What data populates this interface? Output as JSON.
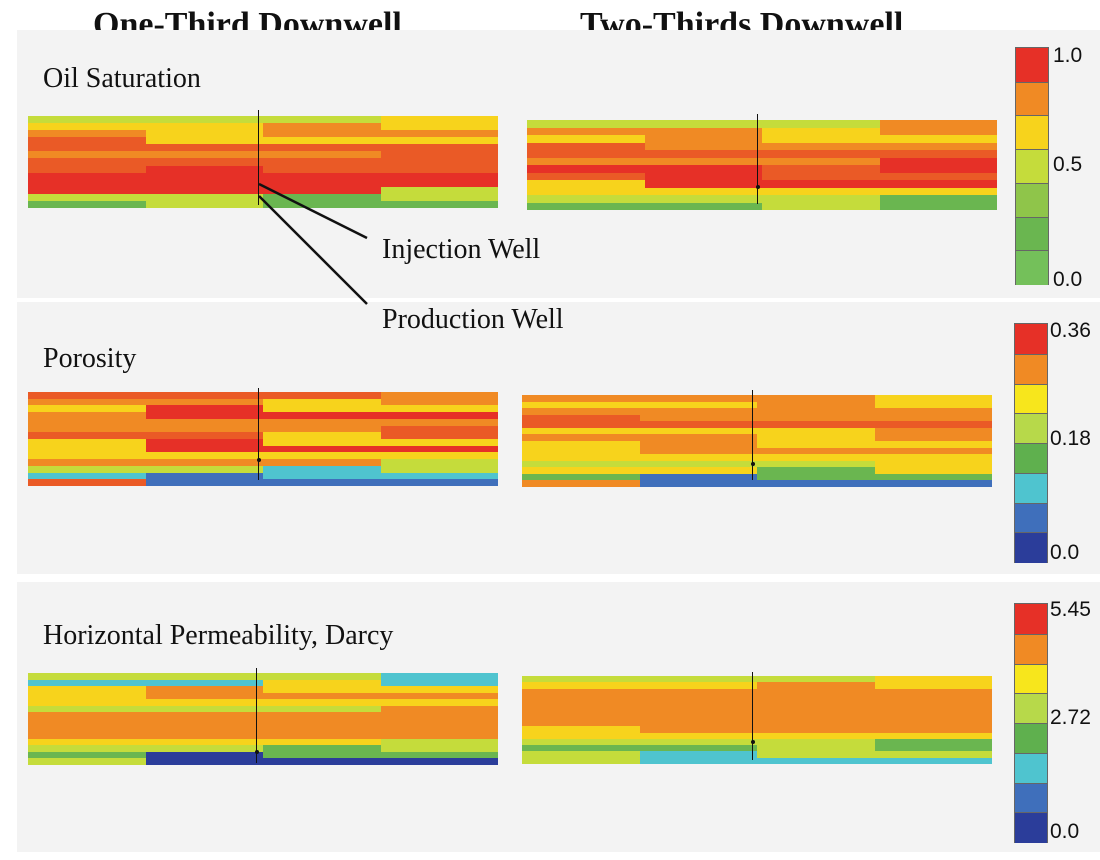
{
  "column_titles": {
    "left": "One-Third Downwell",
    "right": "Two-Thirds Downwell"
  },
  "panels": [
    {
      "label": "Oil Saturation",
      "colorbar": {
        "max": "1.0",
        "mid": "0.5",
        "min": "0.0",
        "colors": [
          "#e63027",
          "#f08a24",
          "#f7d31c",
          "#c5dc3b",
          "#8fc54a",
          "#6ab650",
          "#74c05a"
        ]
      }
    },
    {
      "label": "Porosity",
      "colorbar": {
        "max": "0.36",
        "mid": "0.18",
        "min": "0.0",
        "colors": [
          "#e63027",
          "#f08a24",
          "#f7e61c",
          "#b7d94a",
          "#5fb04e",
          "#4fc4cf",
          "#3f6fbb",
          "#2b3d9a"
        ]
      }
    },
    {
      "label": "Horizontal Permeability, Darcy",
      "colorbar": {
        "max": "5.45",
        "mid": "2.72",
        "min": "0.0",
        "colors": [
          "#e63027",
          "#f08a24",
          "#f7e61c",
          "#b7d94a",
          "#5fb04e",
          "#4fc4cf",
          "#3f6fbb",
          "#2b3d9a"
        ]
      }
    }
  ],
  "annotations": {
    "injection_well": "Injection Well",
    "production_well": "Production Well"
  },
  "palette": {
    "red": "#e63027",
    "red_orange": "#ea5a26",
    "orange": "#f08a24",
    "yellow": "#f7d31c",
    "yellow_green": "#c5dc3b",
    "green": "#6ab650",
    "cyan": "#4fc4cf",
    "blue": "#3f6fbb",
    "navy": "#2b3d9a"
  }
}
